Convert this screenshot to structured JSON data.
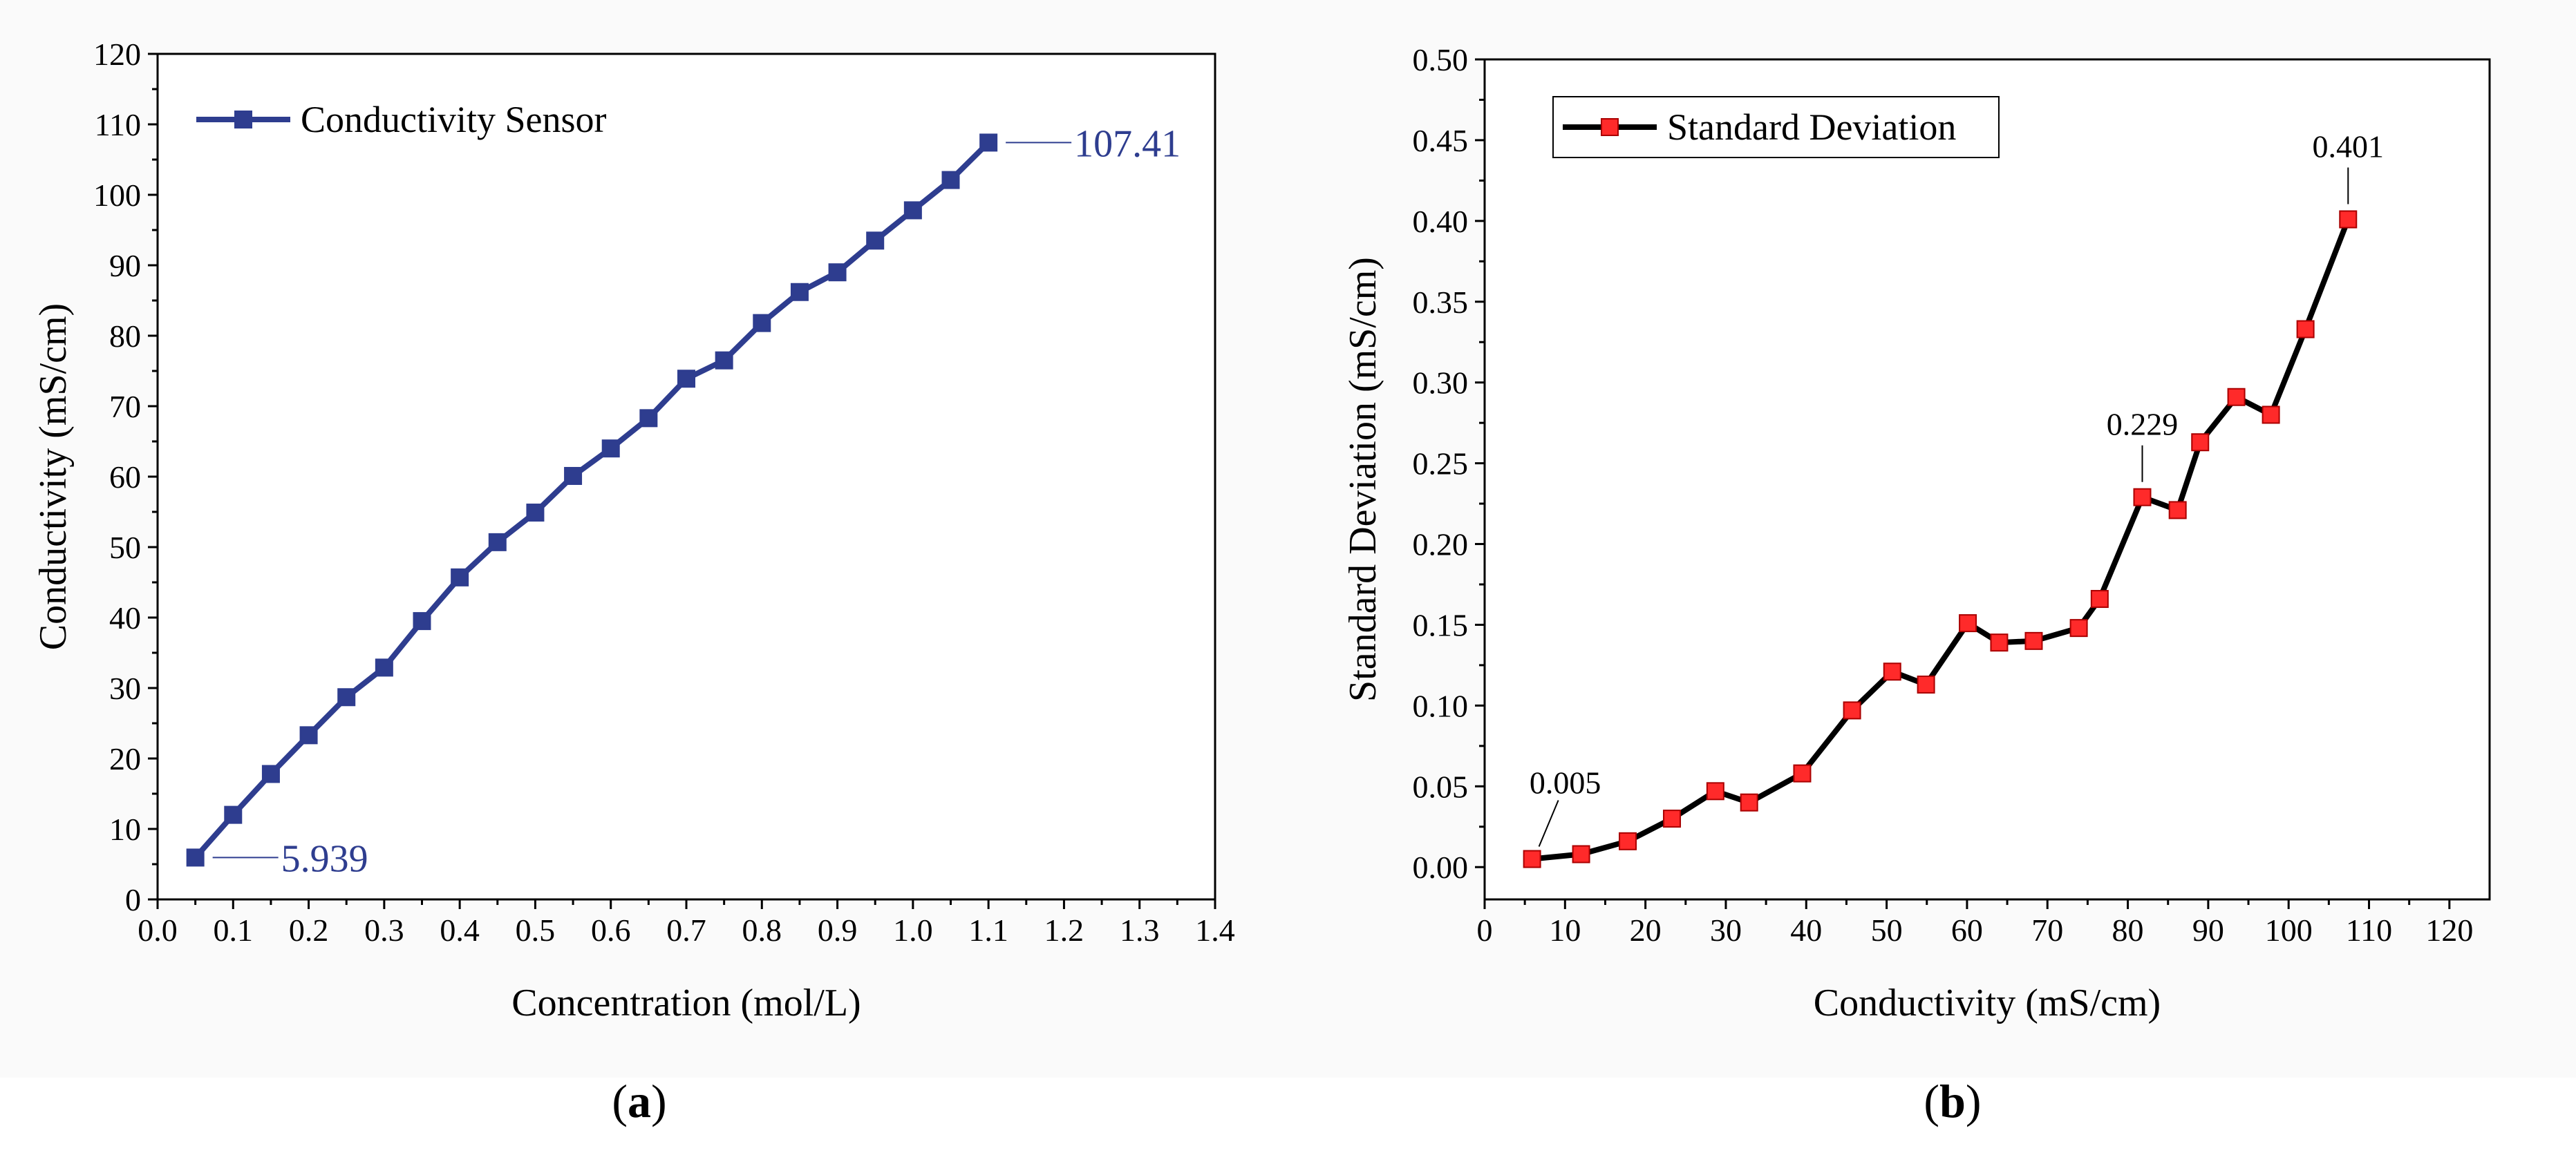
{
  "chart_data": [
    {
      "type": "line",
      "panel_label": "a",
      "xlabel": "Concentration (mol/L)",
      "ylabel": "Conductivity (mS/cm)",
      "xlim": [
        0.0,
        1.4
      ],
      "ylim": [
        0,
        120
      ],
      "xticks": [
        "0.0",
        "0.1",
        "0.2",
        "0.3",
        "0.4",
        "0.5",
        "0.6",
        "0.7",
        "0.8",
        "0.9",
        "1.0",
        "1.1",
        "1.2",
        "1.3",
        "1.4"
      ],
      "yticks": [
        "0",
        "10",
        "20",
        "30",
        "40",
        "50",
        "60",
        "70",
        "80",
        "90",
        "100",
        "110",
        "120"
      ],
      "grid": false,
      "legend_position": "top-left",
      "color": "#2e3d8f",
      "marker": "square",
      "series": [
        {
          "name": "Conductivity Sensor",
          "x": [
            0.05,
            0.1,
            0.15,
            0.2,
            0.25,
            0.3,
            0.35,
            0.4,
            0.45,
            0.5,
            0.55,
            0.6,
            0.65,
            0.7,
            0.75,
            0.8,
            0.85,
            0.9,
            0.95,
            1.0,
            1.05,
            1.1
          ],
          "y": [
            5.939,
            12.0,
            17.8,
            23.3,
            28.7,
            32.9,
            39.5,
            45.7,
            50.7,
            54.9,
            60.1,
            64.0,
            68.3,
            73.9,
            76.5,
            81.8,
            86.2,
            89.0,
            93.5,
            97.8,
            102.1,
            107.41
          ]
        }
      ],
      "annotations": [
        {
          "text": "5.939",
          "x": 0.05,
          "y": 5.939,
          "side": "right"
        },
        {
          "text": "107.41",
          "x": 1.1,
          "y": 107.41,
          "side": "right"
        }
      ]
    },
    {
      "type": "line",
      "panel_label": "b",
      "xlabel": "Conductivity (mS/cm)",
      "ylabel": "Standard Deviation (mS/cm)",
      "xlim": [
        0,
        125
      ],
      "ylim": [
        -0.02,
        0.5
      ],
      "xticks": [
        "0",
        "10",
        "20",
        "30",
        "40",
        "50",
        "60",
        "70",
        "80",
        "90",
        "100",
        "110",
        "120"
      ],
      "yticks": [
        "0.00",
        "0.05",
        "0.10",
        "0.15",
        "0.20",
        "0.25",
        "0.30",
        "0.35",
        "0.40",
        "0.45",
        "0.50"
      ],
      "grid": false,
      "legend_position": "top-left",
      "line_color": "#000000",
      "marker_color": "#ff2a2a",
      "marker": "square",
      "series": [
        {
          "name": "Standard Deviation",
          "x": [
            5.9,
            12.0,
            17.8,
            23.3,
            28.7,
            32.9,
            39.5,
            45.7,
            50.7,
            54.9,
            60.1,
            64.0,
            68.3,
            73.9,
            76.5,
            81.8,
            86.2,
            89.0,
            93.5,
            97.8,
            102.1,
            107.4
          ],
          "y": [
            0.005,
            0.008,
            0.016,
            0.03,
            0.047,
            0.04,
            0.058,
            0.097,
            0.121,
            0.113,
            0.151,
            0.139,
            0.14,
            0.148,
            0.166,
            0.229,
            0.221,
            0.263,
            0.291,
            0.28,
            0.333,
            0.401
          ]
        }
      ],
      "annotations": [
        {
          "text": "0.005",
          "x": 5.9,
          "y": 0.005,
          "side": "up-right"
        },
        {
          "text": "0.229",
          "x": 81.8,
          "y": 0.229,
          "side": "up"
        },
        {
          "text": "0.401",
          "x": 107.4,
          "y": 0.401,
          "side": "up"
        }
      ]
    }
  ]
}
